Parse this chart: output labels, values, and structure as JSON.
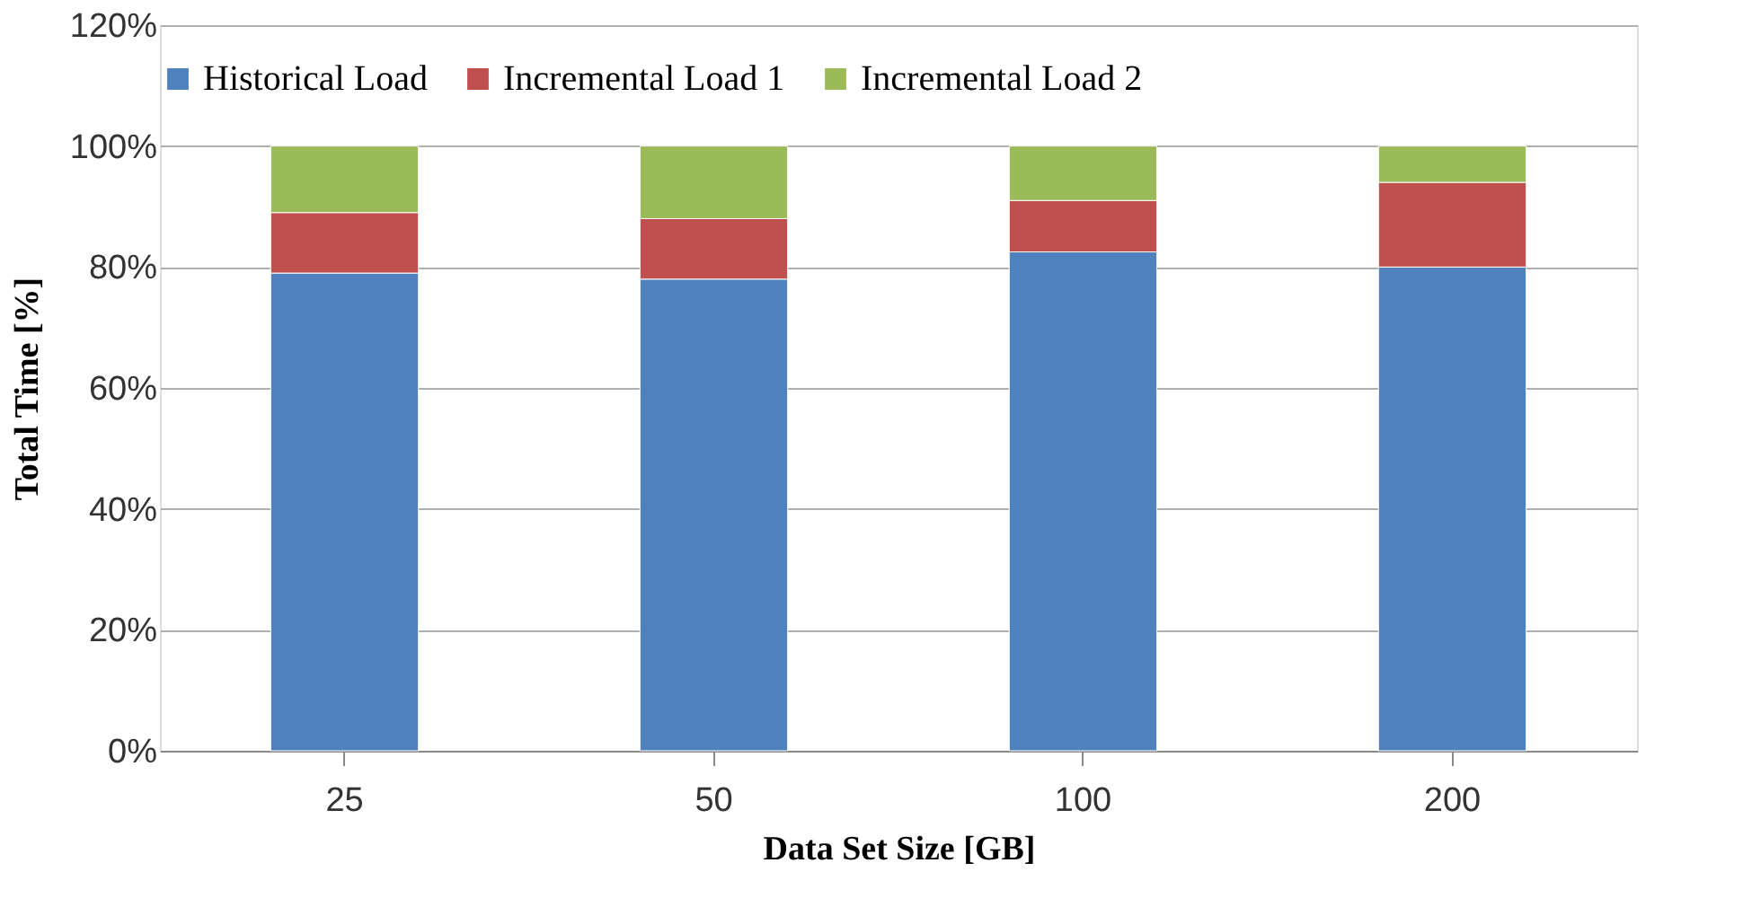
{
  "chart_data": {
    "type": "bar",
    "stacked": true,
    "xlabel": "Data Set Size [GB]",
    "ylabel": "Total Time [%]",
    "categories": [
      "25",
      "50",
      "100",
      "200"
    ],
    "series": [
      {
        "name": "Historical Load",
        "color": "#4f81bd",
        "values": [
          79,
          78,
          82.5,
          80
        ]
      },
      {
        "name": "Incremental Load 1",
        "color": "#c0504d",
        "values": [
          10,
          10,
          8.5,
          14
        ]
      },
      {
        "name": "Incremental Load 2",
        "color": "#9bbb59",
        "values": [
          11,
          12,
          9,
          6
        ]
      }
    ],
    "ylim": [
      0,
      120
    ],
    "yticks": [
      {
        "value": 0,
        "label": "0%"
      },
      {
        "value": 20,
        "label": "20%"
      },
      {
        "value": 40,
        "label": "40%"
      },
      {
        "value": 60,
        "label": "60%"
      },
      {
        "value": 80,
        "label": "80%"
      },
      {
        "value": 100,
        "label": "100%"
      },
      {
        "value": 120,
        "label": "120%"
      }
    ],
    "grid": "y",
    "legend": "top"
  }
}
